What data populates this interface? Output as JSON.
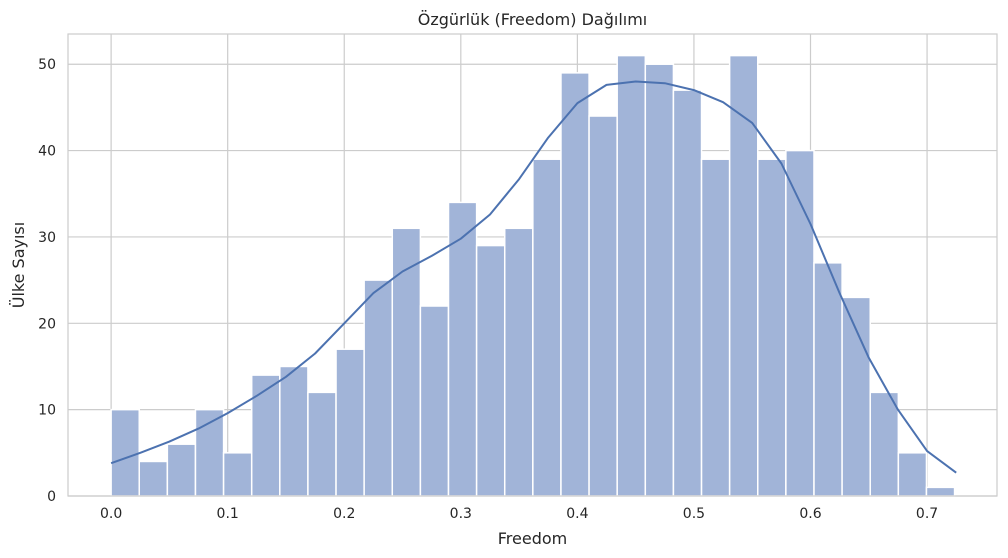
{
  "chart_data": {
    "type": "bar",
    "title": "Özgürlük (Freedom) Dağılımı",
    "xlabel": "Freedom",
    "ylabel": "Ülke Sayısı",
    "xlim": [
      -0.037,
      0.76
    ],
    "ylim": [
      0,
      53.5
    ],
    "xticks": [
      "0.0",
      "0.1",
      "0.2",
      "0.3",
      "0.4",
      "0.5",
      "0.6",
      "0.7"
    ],
    "xtick_values": [
      0.0,
      0.1,
      0.2,
      0.3,
      0.4,
      0.5,
      0.6,
      0.7
    ],
    "yticks": [
      "0",
      "10",
      "20",
      "30",
      "40",
      "50"
    ],
    "ytick_values": [
      0,
      10,
      20,
      30,
      40,
      50
    ],
    "bin_start": 0.0,
    "bin_width": 0.02412,
    "values": [
      10,
      4,
      6,
      10,
      5,
      14,
      15,
      12,
      17,
      25,
      31,
      22,
      34,
      29,
      31,
      39,
      49,
      44,
      51,
      50,
      47,
      39,
      51,
      39,
      40,
      27,
      23,
      12,
      5,
      1
    ],
    "kde": {
      "x": [
        0.0,
        0.025,
        0.05,
        0.075,
        0.1,
        0.125,
        0.15,
        0.175,
        0.2,
        0.225,
        0.25,
        0.275,
        0.3,
        0.325,
        0.35,
        0.375,
        0.4,
        0.425,
        0.45,
        0.475,
        0.5,
        0.525,
        0.55,
        0.575,
        0.6,
        0.625,
        0.65,
        0.675,
        0.7,
        0.725
      ],
      "y": [
        3.8,
        5,
        6.3,
        7.8,
        9.6,
        11.6,
        13.8,
        16.5,
        20,
        23.5,
        26,
        27.8,
        29.8,
        32.6,
        36.7,
        41.5,
        45.5,
        47.6,
        48,
        47.8,
        47,
        45.6,
        43.2,
        38.5,
        31.5,
        23.5,
        16,
        10,
        5.2,
        2.7
      ]
    },
    "bar_color": "#a1b4d8",
    "line_color": "#4c72b0",
    "grid": true
  }
}
